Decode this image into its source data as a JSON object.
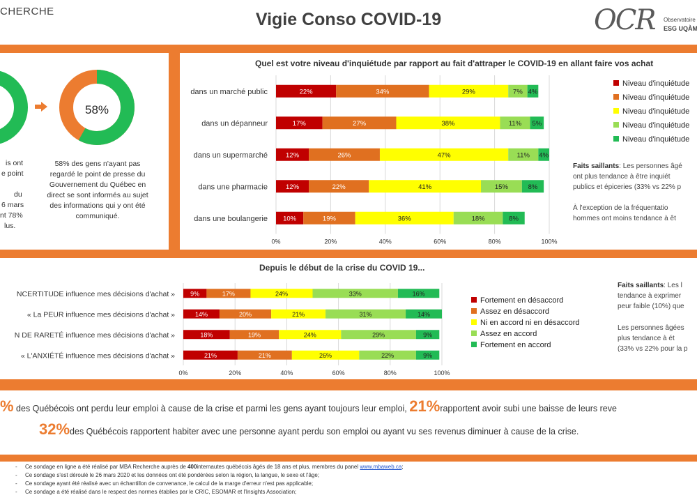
{
  "header": {
    "org_fragment": "CHERCHE",
    "title": "Vigie Conso COVID-19",
    "logo_text": "OCR",
    "logo_sub1": "Observatoire d",
    "logo_sub2": "ESG UQÀM"
  },
  "left_panel": {
    "donut_pct": "58%",
    "donut_value": 58,
    "cut_lines": [
      "is ont",
      "e point",
      "du",
      "6 mars",
      "nt 78%",
      "lus."
    ],
    "text": "58% des gens n'ayant pas regardé  le point de presse  du Gouvernement du Québec en direct se sont informés au sujet des informations qui y ont été communiqué."
  },
  "colors": {
    "c1": "#c00000",
    "c2": "#e07020",
    "c3": "#ffff00",
    "c4": "#99dd55",
    "c5": "#22bb55",
    "band": "#ec7c30",
    "donut_gray": "#808080"
  },
  "chart_data": [
    {
      "type": "bar",
      "stacked": true,
      "orientation": "horizontal",
      "title": "Quel est votre niveau d'inquiétude par rapport au fait d'attraper le COVID-19 en allant faire vos achat",
      "categories": [
        "dans un marché public",
        "dans un dépanneur",
        "dans un supermarché",
        "dans une pharmacie",
        "dans une boulangerie"
      ],
      "series": [
        {
          "name": "Niveau d'inquiétude",
          "values": [
            22,
            17,
            12,
            12,
            10
          ]
        },
        {
          "name": "Niveau d'inquiétude",
          "values": [
            34,
            27,
            26,
            22,
            19
          ]
        },
        {
          "name": "Niveau d'inquiétude",
          "values": [
            29,
            38,
            47,
            41,
            36
          ]
        },
        {
          "name": "Niveau d'inquiétude",
          "values": [
            7,
            11,
            11,
            15,
            18
          ]
        },
        {
          "name": "Niveau d'inquiétude",
          "values": [
            4,
            5,
            4,
            8,
            8
          ]
        }
      ],
      "xlim": [
        0,
        100
      ],
      "xticks": [
        "0%",
        "20%",
        "40%",
        "60%",
        "80%",
        "100%"
      ],
      "legend": "right"
    },
    {
      "type": "bar",
      "stacked": true,
      "orientation": "horizontal",
      "title": "Depuis le début de la crise du COVID 19...",
      "categories": [
        "NCERTITUDE influence mes décisions d'achat »",
        "« La PEUR influence mes décisions d'achat »",
        "N DE RARETÉ influence mes décisions d'achat »",
        "« L'ANXIÉTÉ influence mes décisions d'achat »"
      ],
      "series": [
        {
          "name": "Fortement en désaccord",
          "values": [
            9,
            14,
            18,
            21
          ]
        },
        {
          "name": "Assez en désaccord",
          "values": [
            17,
            20,
            19,
            21
          ]
        },
        {
          "name": "Ni en accord ni en désaccord",
          "values": [
            24,
            21,
            24,
            26
          ]
        },
        {
          "name": "Assez en accord",
          "values": [
            33,
            31,
            29,
            22
          ]
        },
        {
          "name": "Fortement en accord",
          "values": [
            16,
            14,
            9,
            9
          ]
        }
      ],
      "xlim": [
        0,
        100
      ],
      "xticks": [
        "0%",
        "20%",
        "40%",
        "60%",
        "80%",
        "100%"
      ],
      "legend": "right"
    }
  ],
  "faits1": {
    "head": "Faits saillants",
    "line1": ": Les personnes âgé",
    "line2": "ont plus tendance à être inquiét",
    "line3": "publics et épiceries (33% vs 22% p",
    "line4": "À l'exception de la fréquentatio",
    "line5": "hommes ont moins tendance à êt"
  },
  "faits2": {
    "head": "Faits saillants",
    "line1": ": Les l",
    "line2": "tendance à exprimer",
    "line3": "peur faible (10%) que",
    "line4": "Les personnes âgées",
    "line5": "plus tendance à ét",
    "line6": "(33% vs 22% pour la p"
  },
  "stats": {
    "line1_prefix": "%",
    "line1_a": "des Québécois ont perdu leur emploi à cause de la crise et parmi les gens ayant toujours leur emploi,",
    "line1_big": "21%",
    "line1_b": "rapportent avoir subi une baisse de leurs reve",
    "line2_big": "32%",
    "line2_text": "des Québécois rapportent habiter avec une personne ayant perdu son emploi ou ayant vu ses revenus diminuer à cause de la crise."
  },
  "footnotes": {
    "n1_a": "Ce sondage en ligne a été réalisé  par MBA Recherche auprès de ",
    "n1_bold": "400",
    "n1_b": "internautes québécois âgés de 18 ans et plus, membres du panel ",
    "n1_link": "www.mbaweb.ca",
    "n1_c": ";",
    "n2": "Ce sondage s'est déroulé le 26 mars 2020 et les données ont été pondérées selon la région, la langue, le sexe et l'âge;",
    "n3": "Ce sondage ayant été réalisé avec un échantillon de convenance, le calcul de la marge d'erreur n'est pas applicable;",
    "n4": "Ce sondage a été réalisé dans le respect des normes établies par le CRIC, ESOMAR et l'Insights Association;"
  }
}
